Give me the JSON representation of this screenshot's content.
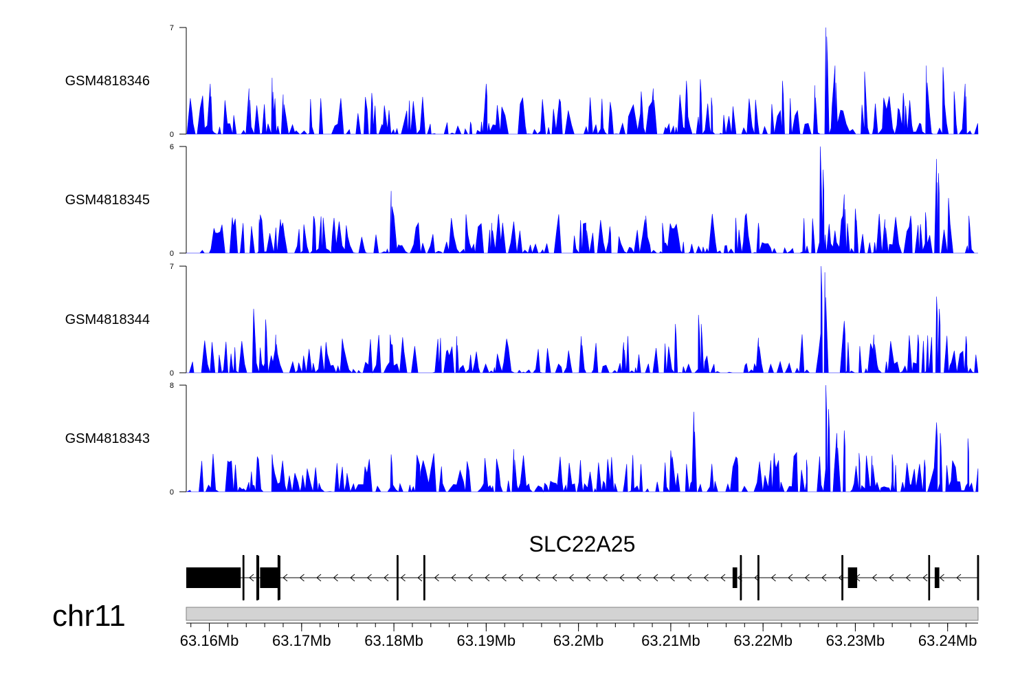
{
  "chart_data": {
    "type": "area",
    "genome": "chr11",
    "x_axis": {
      "range_mb": [
        63.1575,
        63.2433
      ],
      "tick_labels": [
        "63.16Mb",
        "63.17Mb",
        "63.18Mb",
        "63.19Mb",
        "63.2Mb",
        "63.21Mb",
        "63.22Mb",
        "63.23Mb",
        "63.24Mb"
      ],
      "tick_values_mb": [
        63.16,
        63.17,
        63.18,
        63.19,
        63.2,
        63.21,
        63.22,
        63.23,
        63.24
      ],
      "minor_step_mb": 0.002
    },
    "fill_color": "#0000ff",
    "series": [
      {
        "name": "GSM4818346",
        "ymax": 7,
        "ymin": 0,
        "ymax_label": "7",
        "ymin_label": "0",
        "peaks": [
          [
            63.1601,
            3.3
          ],
          [
            63.1643,
            3.0
          ],
          [
            63.1668,
            3.7
          ],
          [
            63.168,
            2.6
          ],
          [
            63.1776,
            2.7
          ],
          [
            63.1883,
            0.8
          ],
          [
            63.19,
            3.3
          ],
          [
            63.1912,
            1.9
          ],
          [
            63.2068,
            2.8
          ],
          [
            63.2081,
            3.0
          ],
          [
            63.2117,
            3.5
          ],
          [
            63.2132,
            3.6
          ],
          [
            63.2144,
            2.4
          ],
          [
            63.2221,
            3.5
          ],
          [
            63.2256,
            3.2
          ],
          [
            63.2268,
            7.0
          ],
          [
            63.2269,
            6.4
          ],
          [
            63.2278,
            4.5
          ],
          [
            63.231,
            4.1
          ],
          [
            63.2352,
            2.7
          ],
          [
            63.2377,
            4.5
          ],
          [
            63.2395,
            4.4
          ],
          [
            63.2407,
            2.8
          ],
          [
            63.2419,
            3.3
          ]
        ]
      },
      {
        "name": "GSM4818345",
        "ymax": 6,
        "ymin": 0,
        "ymax_label": "6",
        "ymin_label": "0",
        "peaks": [
          [
            63.1625,
            2.0
          ],
          [
            63.1654,
            1.9
          ],
          [
            63.1677,
            1.9
          ],
          [
            63.1714,
            1.9
          ],
          [
            63.1797,
            3.5
          ],
          [
            63.18,
            2.1
          ],
          [
            63.1906,
            1.7
          ],
          [
            63.2008,
            1.7
          ],
          [
            63.2034,
            1.5
          ],
          [
            63.2072,
            1.9
          ],
          [
            63.2091,
            1.7
          ],
          [
            63.2195,
            1.7
          ],
          [
            63.2262,
            6.0
          ],
          [
            63.2265,
            4.7
          ],
          [
            63.2288,
            3.3
          ],
          [
            63.23,
            2.5
          ],
          [
            63.2332,
            1.9
          ],
          [
            63.236,
            2.1
          ],
          [
            63.2376,
            2.3
          ],
          [
            63.2388,
            5.3
          ],
          [
            63.239,
            4.5
          ],
          [
            63.2401,
            3.1
          ],
          [
            63.2423,
            2.1
          ]
        ]
      },
      {
        "name": "GSM4818344",
        "ymax": 7,
        "ymin": 0,
        "ymax_label": "7",
        "ymin_label": "0",
        "peaks": [
          [
            63.1648,
            4.2
          ],
          [
            63.1661,
            3.5
          ],
          [
            63.1672,
            2.5
          ],
          [
            63.1796,
            2.5
          ],
          [
            63.1868,
            2.4
          ],
          [
            63.2003,
            2.4
          ],
          [
            63.2049,
            2.0
          ],
          [
            63.2105,
            3.2
          ],
          [
            63.213,
            3.8
          ],
          [
            63.2133,
            3.2
          ],
          [
            63.2195,
            2.3
          ],
          [
            63.2263,
            7.0
          ],
          [
            63.2267,
            6.6
          ],
          [
            63.2288,
            3.4
          ],
          [
            63.232,
            2.5
          ],
          [
            63.2368,
            2.5
          ],
          [
            63.2388,
            5.0
          ],
          [
            63.2391,
            4.2
          ],
          [
            63.242,
            2.4
          ]
        ]
      },
      {
        "name": "GSM4818343",
        "ymax": 8,
        "ymin": 0,
        "ymax_label": "8",
        "ymin_label": "0",
        "peaks": [
          [
            63.1668,
            2.8
          ],
          [
            63.1797,
            2.8
          ],
          [
            63.1828,
            2.0
          ],
          [
            63.193,
            3.2
          ],
          [
            63.21,
            3.1
          ],
          [
            63.2125,
            6.0
          ],
          [
            63.2172,
            2.5
          ],
          [
            63.2212,
            2.9
          ],
          [
            63.2247,
            2.4
          ],
          [
            63.2268,
            8.0
          ],
          [
            63.2271,
            6.2
          ],
          [
            63.228,
            4.4
          ],
          [
            63.2288,
            4.6
          ],
          [
            63.2304,
            2.9
          ],
          [
            63.2318,
            2.7
          ],
          [
            63.234,
            2.8
          ],
          [
            63.2375,
            2.4
          ],
          [
            63.2388,
            5.2
          ],
          [
            63.2392,
            4.4
          ],
          [
            63.2422,
            4.0
          ]
        ]
      }
    ],
    "gene_track": {
      "gene_name": "SLC22A25",
      "strand": "-",
      "span_mb": [
        63.1575,
        63.2433
      ],
      "exons_mb": [
        [
          63.1575,
          63.1631
        ],
        [
          63.163,
          63.1634
        ],
        [
          63.1636,
          63.1638
        ],
        [
          63.1651,
          63.1654
        ],
        [
          63.1655,
          63.1675
        ],
        [
          63.1674,
          63.1677
        ],
        [
          63.1803,
          63.1805
        ],
        [
          63.1832,
          63.1834
        ],
        [
          63.2167,
          63.2172
        ],
        [
          63.2175,
          63.2177
        ],
        [
          63.2194,
          63.2196
        ],
        [
          63.2285,
          63.2287
        ],
        [
          63.2292,
          63.2297
        ],
        [
          63.2294,
          63.2302
        ],
        [
          63.2379,
          63.2381
        ],
        [
          63.2386,
          63.2391
        ],
        [
          63.2432,
          63.2434
        ]
      ]
    }
  }
}
